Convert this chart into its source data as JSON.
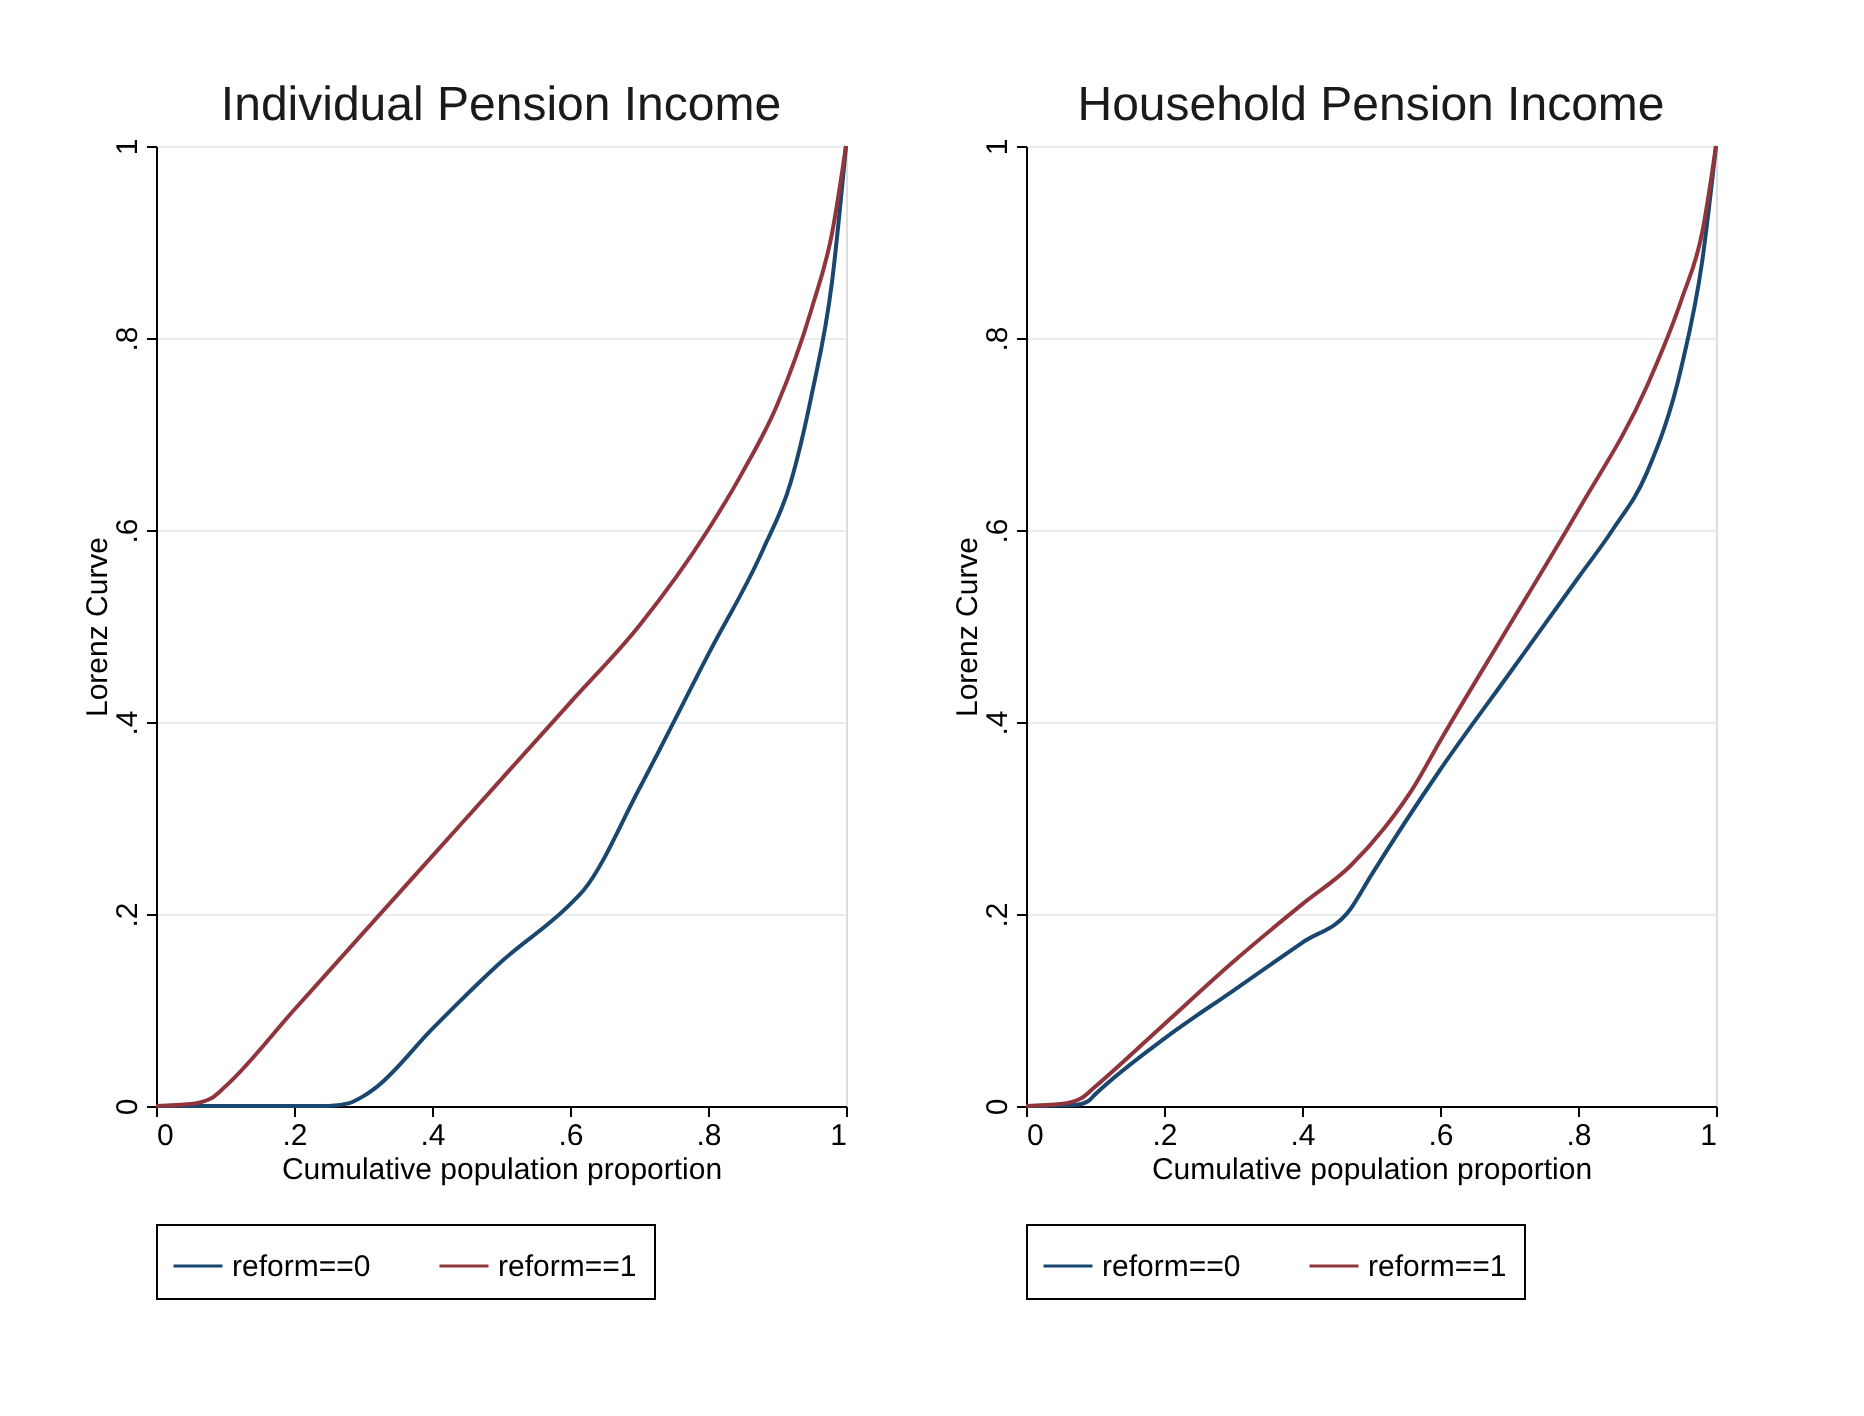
{
  "chart_data": [
    {
      "type": "line",
      "title": "Individual Pension Income",
      "xlabel": "Cumulative population proportion",
      "ylabel": "Lorenz Curve",
      "xlim": [
        0,
        1
      ],
      "ylim": [
        0,
        1
      ],
      "xticks": [
        0,
        {
          "value": 0.2,
          "label": ".2"
        },
        {
          "value": 0.4,
          "label": ".4"
        },
        {
          "value": 0.6,
          "label": ".6"
        },
        {
          "value": 0.8,
          "label": ".8"
        },
        1
      ],
      "yticks": [
        0,
        {
          "value": 0.2,
          "label": ".2"
        },
        {
          "value": 0.4,
          "label": ".4"
        },
        {
          "value": 0.6,
          "label": ".6"
        },
        {
          "value": 0.8,
          "label": ".8"
        },
        1
      ],
      "grid": "y",
      "legend": "bottom",
      "line_style": "solid",
      "marker": "none",
      "series": [
        {
          "name": "reform==0",
          "color": "#1a476f",
          "x": [
            0,
            0.1,
            0.2,
            0.25,
            0.28,
            0.3,
            0.32,
            0.4,
            0.5,
            0.6,
            0.62,
            0.7,
            0.8,
            0.88,
            0.92,
            0.95,
            0.98,
            1
          ],
          "values": [
            0,
            0,
            0,
            0,
            0.003,
            0.01,
            0.02,
            0.08,
            0.15,
            0.21,
            0.225,
            0.33,
            0.47,
            0.58,
            0.65,
            0.74,
            0.86,
            1
          ]
        },
        {
          "name": "reform==1",
          "color": "#90353b",
          "x": [
            0,
            0.05,
            0.08,
            0.1,
            0.2,
            0.3,
            0.4,
            0.5,
            0.6,
            0.7,
            0.8,
            0.85,
            0.9,
            0.95,
            0.98,
            1
          ],
          "values": [
            0,
            0.002,
            0.008,
            0.02,
            0.1,
            0.18,
            0.26,
            0.34,
            0.42,
            0.5,
            0.6,
            0.66,
            0.73,
            0.83,
            0.91,
            1
          ]
        }
      ]
    },
    {
      "type": "line",
      "title": "Household Pension Income",
      "xlabel": "Cumulative population proportion",
      "ylabel": "Lorenz Curve",
      "xlim": [
        0,
        1
      ],
      "ylim": [
        0,
        1
      ],
      "xticks": [
        0,
        {
          "value": 0.2,
          "label": ".2"
        },
        {
          "value": 0.4,
          "label": ".4"
        },
        {
          "value": 0.6,
          "label": ".6"
        },
        {
          "value": 0.8,
          "label": ".8"
        },
        1
      ],
      "yticks": [
        0,
        {
          "value": 0.2,
          "label": ".2"
        },
        {
          "value": 0.4,
          "label": ".4"
        },
        {
          "value": 0.6,
          "label": ".6"
        },
        {
          "value": 0.8,
          "label": ".8"
        },
        1
      ],
      "grid": "y",
      "legend": "bottom",
      "line_style": "solid",
      "marker": "none",
      "series": [
        {
          "name": "reform==0",
          "color": "#1a476f",
          "x": [
            0,
            0.07,
            0.09,
            0.1,
            0.2,
            0.3,
            0.4,
            0.47,
            0.5,
            0.6,
            0.7,
            0.8,
            0.85,
            0.9,
            0.95,
            0.98,
            1
          ],
          "values": [
            0,
            0.001,
            0.005,
            0.012,
            0.07,
            0.12,
            0.17,
            0.205,
            0.24,
            0.35,
            0.45,
            0.55,
            0.6,
            0.66,
            0.77,
            0.88,
            1
          ]
        },
        {
          "name": "reform==1",
          "color": "#90353b",
          "x": [
            0,
            0.05,
            0.08,
            0.1,
            0.2,
            0.3,
            0.4,
            0.47,
            0.52,
            0.56,
            0.6,
            0.7,
            0.8,
            0.9,
            0.95,
            0.98,
            1
          ],
          "values": [
            0,
            0.002,
            0.008,
            0.02,
            0.085,
            0.15,
            0.21,
            0.25,
            0.29,
            0.33,
            0.38,
            0.5,
            0.62,
            0.75,
            0.84,
            0.91,
            1
          ]
        }
      ]
    }
  ]
}
